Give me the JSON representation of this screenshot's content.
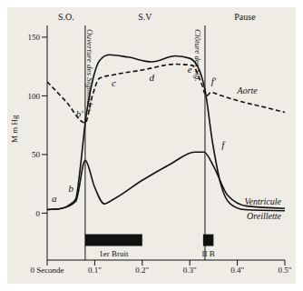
{
  "chart_data": {
    "type": "line",
    "y_label": "M m Hg",
    "xlim": [
      0,
      0.5
    ],
    "xticks": [
      {
        "value": 0,
        "label": "0 Seconde"
      },
      {
        "value": 0.1,
        "label": "0.1\""
      },
      {
        "value": 0.2,
        "label": "0.2\""
      },
      {
        "value": 0.3,
        "label": "0.3\""
      },
      {
        "value": 0.4,
        "label": "0.4\""
      },
      {
        "value": 0.5,
        "label": "0.5\""
      }
    ],
    "ylim": [
      -40,
      160
    ],
    "yticks": [
      0,
      50,
      100,
      150
    ],
    "grid": false,
    "series": [
      {
        "name": "Aorte",
        "color": "#111111",
        "line_style": "dashed",
        "x": [
          0,
          0.04,
          0.08,
          0.095,
          0.11,
          0.14,
          0.2,
          0.27,
          0.305,
          0.325,
          0.335,
          0.345,
          0.36,
          0.4,
          0.45,
          0.5
        ],
        "values": [
          112,
          95,
          77,
          100,
          115,
          118,
          122,
          127,
          126,
          110,
          100,
          103,
          101,
          96,
          91,
          86
        ]
      },
      {
        "name": "Ventricule",
        "color": "#111111",
        "line_style": "solid",
        "x": [
          0,
          0.03,
          0.05,
          0.06,
          0.07,
          0.08,
          0.095,
          0.11,
          0.13,
          0.17,
          0.22,
          0.27,
          0.3,
          0.32,
          0.332,
          0.348,
          0.365,
          0.385,
          0.415,
          0.5
        ],
        "values": [
          3,
          4,
          8,
          12,
          40,
          77,
          112,
          130,
          135,
          133,
          129,
          134,
          132,
          122,
          105,
          60,
          25,
          8,
          3,
          2
        ]
      },
      {
        "name": "Oreillette",
        "color": "#111111",
        "line_style": "solid",
        "x": [
          0,
          0.03,
          0.06,
          0.08,
          0.1,
          0.12,
          0.14,
          0.2,
          0.26,
          0.31,
          0.33,
          0.35,
          0.38,
          0.42,
          0.5
        ],
        "values": [
          3,
          4,
          10,
          45,
          22,
          8,
          12,
          28,
          42,
          52,
          52,
          40,
          15,
          6,
          4
        ]
      }
    ],
    "annotations": [
      {
        "text": "a",
        "x": 0.015,
        "y": 10
      },
      {
        "text": "b",
        "x": 0.05,
        "y": 18
      },
      {
        "text": "b'",
        "x": 0.068,
        "y": 82
      },
      {
        "text": "c",
        "x": 0.14,
        "y": 108
      },
      {
        "text": "d",
        "x": 0.22,
        "y": 113
      },
      {
        "text": "e",
        "x": 0.3,
        "y": 120
      },
      {
        "text": "f'",
        "x": 0.35,
        "y": 110
      },
      {
        "text": "f",
        "x": 0.37,
        "y": 55
      }
    ],
    "phases": [
      {
        "label": "S.O.",
        "start": 0,
        "end": 0.08
      },
      {
        "label": "S.V",
        "start": 0.08,
        "end": 0.332
      },
      {
        "label": "Pause",
        "start": 0.332,
        "end": 0.5
      }
    ],
    "events": [
      {
        "label": "Ouverture des Sigmoïdes",
        "x": 0.08
      },
      {
        "label": "Clôture des Sig.",
        "x": 0.332
      }
    ],
    "sounds": [
      {
        "label": "1er Bruit",
        "start": 0.08,
        "end": 0.2
      },
      {
        "label": "II B",
        "start": 0.328,
        "end": 0.35
      }
    ]
  }
}
